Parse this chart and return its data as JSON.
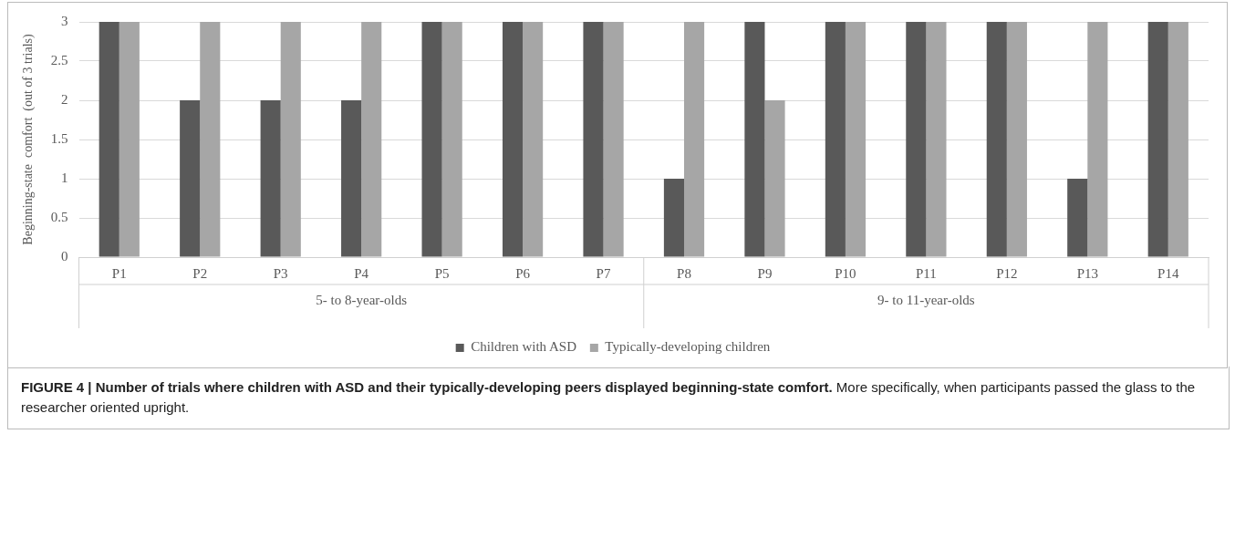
{
  "chart_data": {
    "type": "bar",
    "title": "FIGURE 4 | Number of trials where children with ASD and their typically-developing peers displayed beginning-state comfort.",
    "subtitle": "More specifically, when participants passed the glass to the researcher oriented upright.",
    "ylabel": "Beginning-state  comfort  (out of 3 trials)",
    "categories": [
      "P1",
      "P2",
      "P3",
      "P4",
      "P5",
      "P6",
      "P7",
      "P8",
      "P9",
      "P10",
      "P11",
      "P12",
      "P13",
      "P14"
    ],
    "series": [
      {
        "name": "Children with ASD",
        "color": "#595959",
        "values": [
          3,
          2,
          2,
          2,
          3,
          3,
          3,
          1,
          3,
          3,
          3,
          3,
          1,
          3
        ]
      },
      {
        "name": "Typically-developing children",
        "color": "#a6a6a6",
        "values": [
          3,
          3,
          3,
          3,
          3,
          3,
          3,
          3,
          2,
          3,
          3,
          3,
          3,
          3
        ]
      }
    ],
    "annotations": [
      "5- to 8-year-olds",
      "9- to 11-year-olds"
    ],
    "ylim": [
      0,
      3
    ],
    "yticks": [
      0,
      0.5,
      1,
      1.5,
      2,
      2.5,
      3
    ],
    "grid": "y",
    "legend": "bottom"
  }
}
